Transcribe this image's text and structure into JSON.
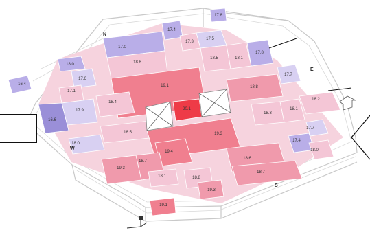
{
  "colors": {
    "purple_dark": "#9a8fd8",
    "purple_mid": "#b9aee8",
    "purple_light": "#d8d0f2",
    "pink_light": "#f4c6d6",
    "pink_mid": "#f09aac",
    "red_mid": "#f07f8f",
    "red_strong": "#ee3b47"
  },
  "compass": {
    "north": "N",
    "east": "E",
    "south": "S",
    "west": "W"
  },
  "cells": [
    {
      "key": "a1",
      "label": "17.8"
    },
    {
      "key": "a2",
      "label": "17.4"
    },
    {
      "key": "a3",
      "label": "17.3"
    },
    {
      "key": "a4",
      "label": "17.5"
    },
    {
      "key": "a5",
      "label": "18.0"
    },
    {
      "key": "a6",
      "label": "17.0"
    },
    {
      "key": "a7",
      "label": "18.8"
    },
    {
      "key": "a8",
      "label": "18.5"
    },
    {
      "key": "a9",
      "label": "18.1"
    },
    {
      "key": "a10",
      "label": "17.8"
    },
    {
      "key": "a11",
      "label": "17.6"
    },
    {
      "key": "a12",
      "label": "19.1"
    },
    {
      "key": "a13",
      "label": "17.7"
    },
    {
      "key": "a14",
      "label": "17.1"
    },
    {
      "key": "a15",
      "label": "18.4"
    },
    {
      "key": "a16",
      "label": "18.8"
    },
    {
      "key": "a17",
      "label": "18.2"
    },
    {
      "key": "a18",
      "label": "16.6"
    },
    {
      "key": "a19",
      "label": "17.9"
    },
    {
      "key": "a20",
      "label": "20.1"
    },
    {
      "key": "a21",
      "label": "18.3"
    },
    {
      "key": "a22",
      "label": "18.1"
    },
    {
      "key": "a23",
      "label": "18.5"
    },
    {
      "key": "a24",
      "label": "19.3"
    },
    {
      "key": "a25",
      "label": "17.7"
    },
    {
      "key": "a26",
      "label": "18.0"
    },
    {
      "key": "a27",
      "label": "19.4"
    },
    {
      "key": "a28",
      "label": "17.4"
    },
    {
      "key": "a29",
      "label": "18.0"
    },
    {
      "key": "a30",
      "label": "19.3"
    },
    {
      "key": "a31",
      "label": "18.7"
    },
    {
      "key": "a32",
      "label": "18.6"
    },
    {
      "key": "a33",
      "label": "18.1"
    },
    {
      "key": "a34",
      "label": "18.8"
    },
    {
      "key": "a35",
      "label": "18.7"
    },
    {
      "key": "a36",
      "label": "19.3"
    },
    {
      "key": "a37",
      "label": "19.1"
    },
    {
      "key": "a38",
      "label": "16.4"
    }
  ]
}
